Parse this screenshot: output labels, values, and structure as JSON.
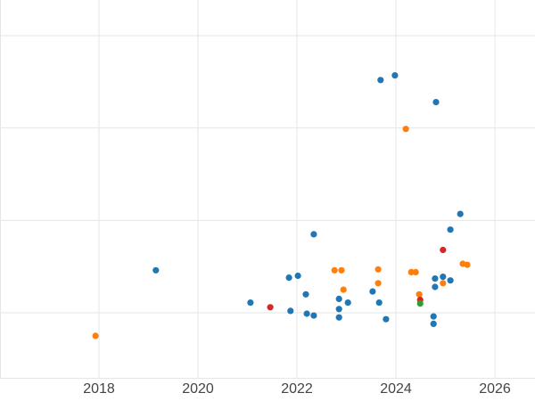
{
  "chart_data": {
    "type": "scatter",
    "title": "",
    "xlabel": "",
    "ylabel": "",
    "xlim": [
      2016.0,
      2026.81
    ],
    "ylim": [
      0.286,
      4.386
    ],
    "x_ticks": [
      {
        "value": 2018,
        "label": "2018"
      },
      {
        "value": 2020,
        "label": "2020"
      },
      {
        "value": 2022,
        "label": "2022"
      },
      {
        "value": 2024,
        "label": "2024"
      },
      {
        "value": 2026,
        "label": "2026"
      }
    ],
    "x_gridlines": [
      2016,
      2018,
      2020,
      2022,
      2024,
      2026
    ],
    "y_gridlines": [
      1,
      2,
      3,
      4
    ],
    "y_tick_labels_visible": false,
    "grid": true,
    "legend_position": "none",
    "marker_radius_px": 3.6,
    "axis_style": {
      "grid_color": "#e6e6e6",
      "axis_line_color": "#e6e6e6",
      "tick_label_color": "#444444",
      "background": "#ffffff"
    },
    "series": [
      {
        "name": "series-blue",
        "color": "#1f77b4",
        "points": [
          [
            2023.69,
            3.52
          ],
          [
            2023.98,
            3.57
          ],
          [
            2024.81,
            3.28
          ],
          [
            2019.15,
            1.46
          ],
          [
            2022.34,
            1.85
          ],
          [
            2025.3,
            2.07
          ],
          [
            2025.1,
            1.9
          ],
          [
            2021.84,
            1.38
          ],
          [
            2022.02,
            1.4
          ],
          [
            2022.18,
            1.2
          ],
          [
            2022.85,
            1.15
          ],
          [
            2022.85,
            1.04
          ],
          [
            2022.85,
            0.95
          ],
          [
            2023.03,
            1.11
          ],
          [
            2023.53,
            1.23
          ],
          [
            2023.66,
            1.11
          ],
          [
            2023.8,
            0.93
          ],
          [
            2021.06,
            1.11
          ],
          [
            2021.87,
            1.02
          ],
          [
            2022.2,
            0.99
          ],
          [
            2022.34,
            0.97
          ],
          [
            2024.79,
            1.37
          ],
          [
            2024.79,
            1.28
          ],
          [
            2024.95,
            1.39
          ],
          [
            2025.1,
            1.35
          ],
          [
            2024.76,
            0.96
          ],
          [
            2024.76,
            0.88
          ]
        ]
      },
      {
        "name": "series-orange",
        "color": "#ff7f0e",
        "points": [
          [
            2017.93,
            0.75
          ],
          [
            2024.2,
            2.99
          ],
          [
            2022.76,
            1.46
          ],
          [
            2022.9,
            1.46
          ],
          [
            2022.94,
            1.25
          ],
          [
            2023.64,
            1.47
          ],
          [
            2023.64,
            1.32
          ],
          [
            2024.31,
            1.44
          ],
          [
            2024.4,
            1.44
          ],
          [
            2024.47,
            1.2
          ],
          [
            2024.95,
            1.32
          ],
          [
            2025.35,
            1.53
          ],
          [
            2025.44,
            1.52
          ]
        ]
      },
      {
        "name": "series-red",
        "color": "#d62728",
        "points": [
          [
            2021.46,
            1.06
          ],
          [
            2024.95,
            1.68
          ],
          [
            2024.49,
            1.14
          ]
        ]
      },
      {
        "name": "series-green",
        "color": "#2ca02c",
        "points": [
          [
            2024.49,
            1.1
          ]
        ]
      }
    ]
  }
}
